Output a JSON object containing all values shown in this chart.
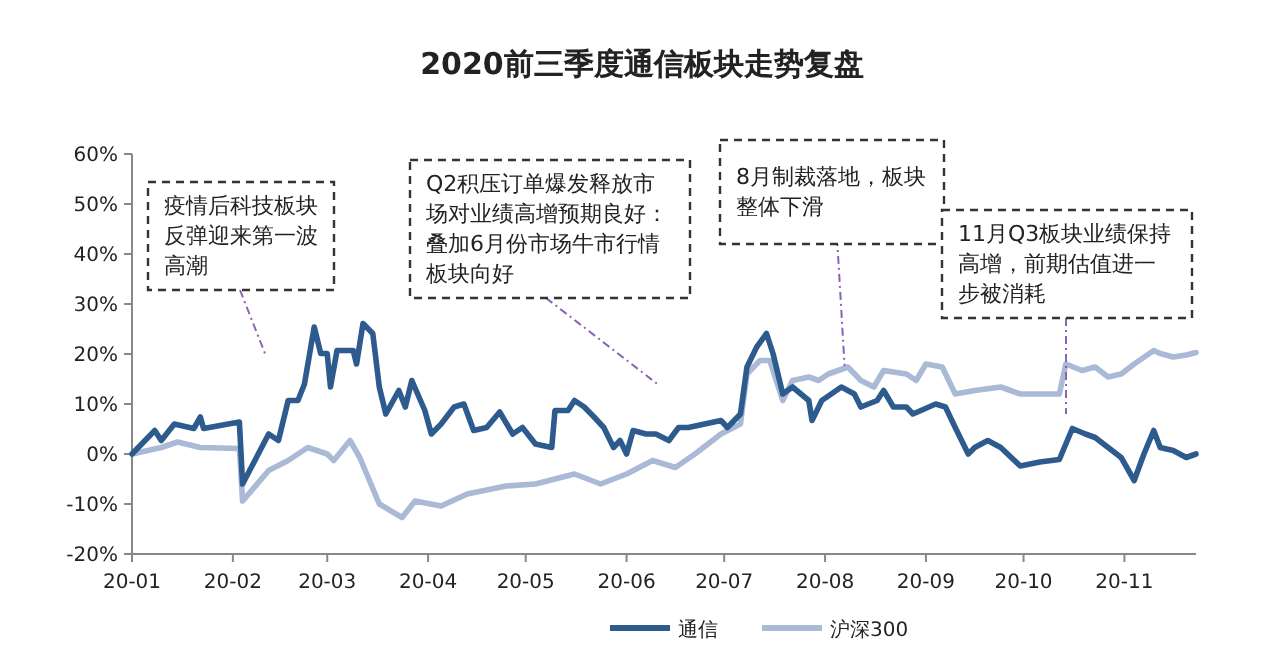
{
  "chart_data": {
    "type": "line",
    "title": "2020前三季度通信板块走势复盘",
    "series": [
      {
        "name": "通信",
        "color": "#2e5b8e",
        "x": [
          "2020-01-01",
          "2020-01-08",
          "2020-01-10",
          "2020-01-14",
          "2020-01-20",
          "2020-01-22",
          "2020-01-23",
          "2020-02-03",
          "2020-02-04",
          "2020-02-12",
          "2020-02-15",
          "2020-02-18",
          "2020-02-21",
          "2020-02-23",
          "2020-02-26",
          "2020-02-28",
          "2020-03-01",
          "2020-03-02",
          "2020-03-04",
          "2020-03-09",
          "2020-03-10",
          "2020-03-12",
          "2020-03-15",
          "2020-03-17",
          "2020-03-19",
          "2020-03-23",
          "2020-03-25",
          "2020-03-27",
          "2020-03-31",
          "2020-04-02",
          "2020-04-05",
          "2020-04-09",
          "2020-04-12",
          "2020-04-15",
          "2020-04-19",
          "2020-04-23",
          "2020-04-27",
          "2020-04-30",
          "2020-05-04",
          "2020-05-09",
          "2020-05-10",
          "2020-05-14",
          "2020-05-16",
          "2020-05-19",
          "2020-05-22",
          "2020-05-25",
          "2020-05-28",
          "2020-05-30",
          "2020-06-01",
          "2020-06-03",
          "2020-06-07",
          "2020-06-10",
          "2020-06-14",
          "2020-06-17",
          "2020-06-20",
          "2020-06-30",
          "2020-07-02",
          "2020-07-06",
          "2020-07-08",
          "2020-07-11",
          "2020-07-14",
          "2020-07-16",
          "2020-07-18",
          "2020-07-19",
          "2020-07-22",
          "2020-07-27",
          "2020-07-28",
          "2020-07-31",
          "2020-08-06",
          "2020-08-10",
          "2020-08-12",
          "2020-08-17",
          "2020-08-19",
          "2020-08-22",
          "2020-08-26",
          "2020-08-28",
          "2020-09-04",
          "2020-09-07",
          "2020-09-10",
          "2020-09-14",
          "2020-09-16",
          "2020-09-20",
          "2020-09-24",
          "2020-09-30",
          "2020-10-06",
          "2020-10-12",
          "2020-10-16",
          "2020-10-20",
          "2020-10-23",
          "2020-10-27",
          "2020-10-31",
          "2020-11-04",
          "2020-11-07",
          "2020-11-10",
          "2020-11-12",
          "2020-11-16",
          "2020-11-20",
          "2020-11-23"
        ],
        "values": [
          0,
          4.7,
          2.7,
          6.0,
          5.1,
          7.4,
          5.1,
          6.4,
          -6.0,
          4.0,
          2.7,
          10.7,
          10.7,
          14.0,
          25.4,
          20.1,
          20.1,
          13.4,
          20.7,
          20.7,
          18.0,
          26.1,
          24.1,
          13.4,
          8.0,
          12.7,
          9.4,
          14.7,
          8.7,
          4.0,
          6.0,
          9.4,
          10.0,
          4.7,
          5.3,
          8.4,
          4.0,
          5.3,
          2.0,
          1.3,
          8.7,
          8.7,
          10.7,
          9.4,
          7.4,
          5.3,
          1.3,
          2.7,
          0,
          4.7,
          4.0,
          4.0,
          2.7,
          5.3,
          5.3,
          6.7,
          5.3,
          8.0,
          17.4,
          21.4,
          24.1,
          20.1,
          14.7,
          12.0,
          13.4,
          10.7,
          6.7,
          10.7,
          13.4,
          12.0,
          9.4,
          10.7,
          12.7,
          9.4,
          9.4,
          8.0,
          10.0,
          9.4,
          5.3,
          0,
          1.3,
          2.7,
          1.3,
          -2.4,
          -1.6,
          -1.1,
          5.1,
          4.0,
          3.3,
          1.3,
          -0.7,
          -5.3,
          0,
          4.7,
          1.3,
          0.7,
          -0.7,
          0
        ]
      },
      {
        "name": "沪深300",
        "color": "#a9b9d6",
        "x": [
          "2020-01-01",
          "2020-01-10",
          "2020-01-15",
          "2020-01-22",
          "2020-02-03",
          "2020-02-04",
          "2020-02-12",
          "2020-02-18",
          "2020-02-24",
          "2020-03-01",
          "2020-03-03",
          "2020-03-08",
          "2020-03-11",
          "2020-03-17",
          "2020-03-24",
          "2020-03-28",
          "2020-04-05",
          "2020-04-13",
          "2020-04-25",
          "2020-05-04",
          "2020-05-16",
          "2020-05-24",
          "2020-06-01",
          "2020-06-09",
          "2020-06-16",
          "2020-06-22",
          "2020-06-30",
          "2020-07-06",
          "2020-07-08",
          "2020-07-12",
          "2020-07-15",
          "2020-07-17",
          "2020-07-19",
          "2020-07-22",
          "2020-07-27",
          "2020-07-30",
          "2020-08-02",
          "2020-08-08",
          "2020-08-12",
          "2020-08-16",
          "2020-08-19",
          "2020-08-26",
          "2020-08-29",
          "2020-09-01",
          "2020-09-06",
          "2020-09-10",
          "2020-09-16",
          "2020-09-24",
          "2020-09-30",
          "2020-10-12",
          "2020-10-14",
          "2020-10-19",
          "2020-10-23",
          "2020-10-27",
          "2020-10-31",
          "2020-11-04",
          "2020-11-10",
          "2020-11-12",
          "2020-11-16",
          "2020-11-20",
          "2020-11-23"
        ],
        "values": [
          0,
          1.3,
          2.4,
          1.3,
          1.1,
          -9.4,
          -3.3,
          -1.3,
          1.3,
          0,
          -1.3,
          2.7,
          -0.7,
          -10.0,
          -12.7,
          -9.4,
          -10.4,
          -8.0,
          -6.4,
          -6.0,
          -4.0,
          -6.0,
          -4.0,
          -1.3,
          -2.7,
          0,
          4.0,
          6.0,
          16.0,
          18.7,
          18.7,
          14.7,
          10.7,
          14.7,
          15.4,
          14.7,
          16.0,
          17.4,
          14.7,
          13.4,
          16.7,
          16.0,
          14.7,
          18.0,
          17.4,
          12.0,
          12.7,
          13.4,
          12.0,
          12.0,
          18.0,
          16.7,
          17.4,
          15.4,
          16.0,
          18.0,
          20.7,
          20.1,
          19.4,
          19.8,
          20.3
        ]
      }
    ],
    "xlim": [
      "2020-01-01",
      "2020-11-23"
    ],
    "xticks": [
      {
        "value": "2020-01-01",
        "label": "20-01"
      },
      {
        "value": "2020-02-01",
        "label": "20-02"
      },
      {
        "value": "2020-03-01",
        "label": "20-03"
      },
      {
        "value": "2020-04-01",
        "label": "20-04"
      },
      {
        "value": "2020-05-01",
        "label": "20-05"
      },
      {
        "value": "2020-06-01",
        "label": "20-06"
      },
      {
        "value": "2020-07-01",
        "label": "20-07"
      },
      {
        "value": "2020-08-01",
        "label": "20-08"
      },
      {
        "value": "2020-09-01",
        "label": "20-09"
      },
      {
        "value": "2020-10-01",
        "label": "20-10"
      },
      {
        "value": "2020-11-01",
        "label": "20-11"
      }
    ],
    "ylim": [
      -20,
      60
    ],
    "yticks": [
      {
        "value": -20,
        "label": "-20%"
      },
      {
        "value": -10,
        "label": "-10%"
      },
      {
        "value": 0,
        "label": "0%"
      },
      {
        "value": 10,
        "label": "10%"
      },
      {
        "value": 20,
        "label": "20%"
      },
      {
        "value": 30,
        "label": "30%"
      },
      {
        "value": 40,
        "label": "40%"
      },
      {
        "value": 50,
        "label": "50%"
      },
      {
        "value": 60,
        "label": "60%"
      }
    ],
    "legend": "bottom",
    "annotations": [
      "疫情后科技板块反弹迎来第一波高潮",
      "Q2积压订单爆发释放市场对业绩高增预期良好：叠加6月份市场牛市行情板块向好",
      {
        "text": "8月制裁落地，板块整体下滑",
        "x": "2020-08-07",
        "y": 17.6
      },
      "11月Q3板块业绩保持高增，前期估值进一步被消耗"
    ]
  }
}
